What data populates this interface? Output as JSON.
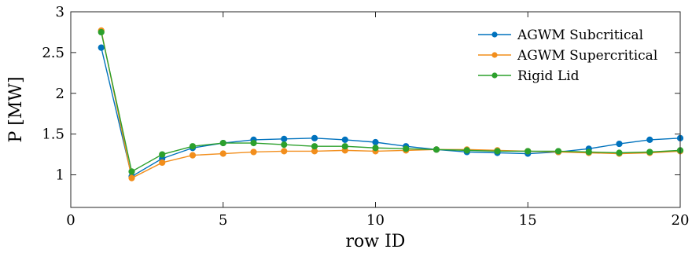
{
  "chart_data": {
    "type": "line",
    "xlabel": "row ID",
    "ylabel": "P [MW]",
    "xlim": [
      0,
      20
    ],
    "ylim": [
      0.6,
      3
    ],
    "xticks": [
      0,
      5,
      10,
      15,
      20
    ],
    "yticks": [
      1,
      1.5,
      2,
      2.5,
      3
    ],
    "xtick_labels": [
      "0",
      "5",
      "10",
      "15",
      "20"
    ],
    "ytick_labels": [
      "1",
      "1.5",
      "2",
      "2.5",
      "3"
    ],
    "grid": false,
    "legend_position": "top-right",
    "x": [
      1,
      2,
      3,
      4,
      5,
      6,
      7,
      8,
      9,
      10,
      11,
      12,
      13,
      14,
      15,
      16,
      17,
      18,
      19,
      20
    ],
    "series": [
      {
        "name": "AGWM Subcritical",
        "color": "#0072BD",
        "values": [
          2.56,
          0.98,
          1.2,
          1.33,
          1.39,
          1.43,
          1.44,
          1.45,
          1.43,
          1.4,
          1.35,
          1.31,
          1.28,
          1.27,
          1.26,
          1.28,
          1.32,
          1.38,
          1.43,
          1.45
        ]
      },
      {
        "name": "AGWM Supercritical",
        "color": "#F28E1C",
        "values": [
          2.77,
          0.96,
          1.15,
          1.24,
          1.26,
          1.28,
          1.29,
          1.29,
          1.3,
          1.29,
          1.3,
          1.31,
          1.31,
          1.3,
          1.29,
          1.28,
          1.27,
          1.26,
          1.27,
          1.29
        ]
      },
      {
        "name": "Rigid Lid",
        "color": "#2CA02C",
        "values": [
          2.75,
          1.04,
          1.25,
          1.35,
          1.39,
          1.39,
          1.37,
          1.35,
          1.35,
          1.33,
          1.32,
          1.31,
          1.3,
          1.29,
          1.29,
          1.29,
          1.28,
          1.27,
          1.28,
          1.3
        ]
      }
    ]
  }
}
